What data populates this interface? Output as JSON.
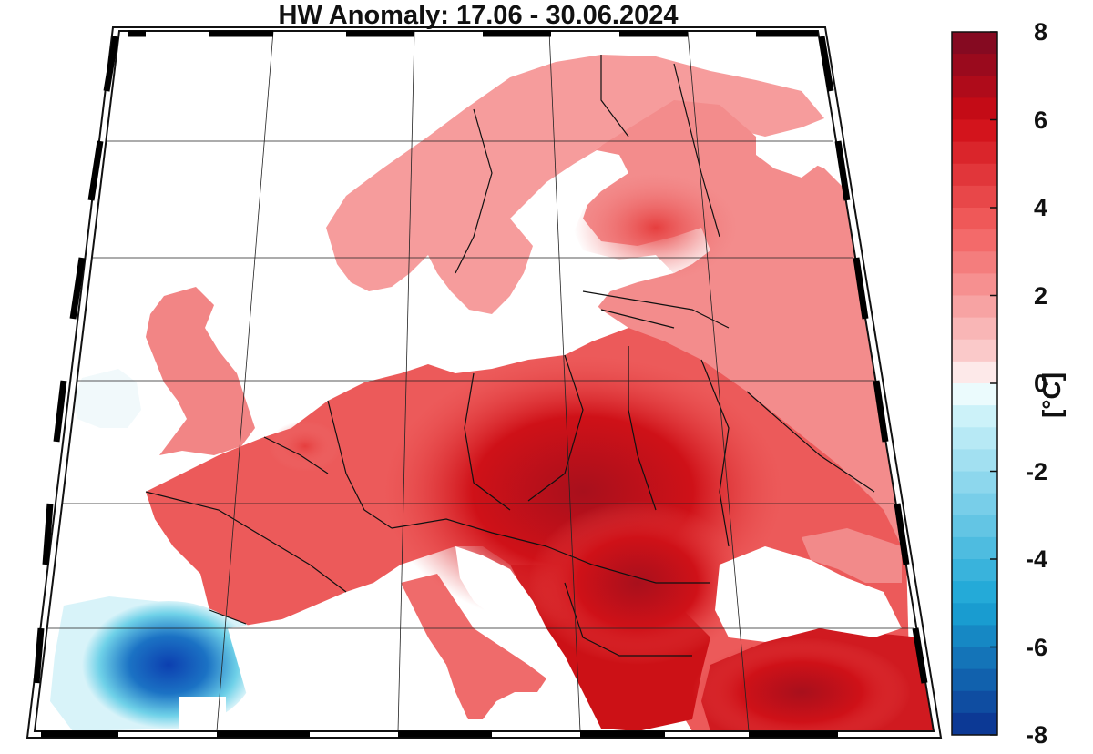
{
  "title": "HW Anomaly: 17.06 - 30.06.2024",
  "colorbar": {
    "unit": "[°C]",
    "min": -8,
    "max": 8,
    "ticks": [
      "8",
      "6",
      "4",
      "2",
      "0",
      "-2",
      "-4",
      "-6",
      "-8"
    ],
    "tick_values": [
      8,
      6,
      4,
      2,
      0,
      -2,
      -4,
      -6,
      -8
    ],
    "levels": 32,
    "colors": {
      "neg_max": "#0b2f8f",
      "neg_mid": "#1aa6d6",
      "neg_low": "#d6f6fb",
      "zero": "#ffffff",
      "pos_low": "#fbd3d3",
      "pos_mid": "#f26060",
      "pos_high": "#cf0b14",
      "pos_max": "#7a0a23"
    }
  },
  "map": {
    "region": "Europe",
    "colors": {
      "land_mild": "#f7a3a3",
      "land_warm": "#ef5f5f",
      "land_hot": "#d4141c",
      "land_extreme": "#a8101c",
      "land_cool": "#d8f3f9",
      "land_cold": "#1b8fc9",
      "land_coldest": "#0c3fb0",
      "water": "#ffffff",
      "border": "#111111"
    }
  }
}
